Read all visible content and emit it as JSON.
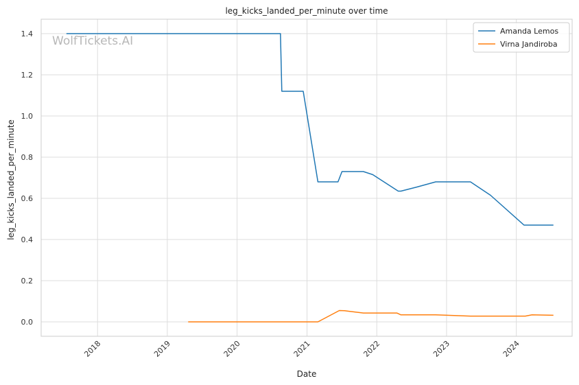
{
  "watermark": "WolfTickets.AI",
  "chart_data": {
    "type": "line",
    "title": "leg_kicks_landed_per_minute over time",
    "xlabel": "Date",
    "ylabel": "leg_kicks_landed_per_minute",
    "x_type": "date",
    "xlim": [
      "2017-03-12",
      "2024-10-19"
    ],
    "ylim": [
      -0.07,
      1.47
    ],
    "x_ticks": [
      {
        "date": "2018-01-01",
        "label": "2018"
      },
      {
        "date": "2019-01-01",
        "label": "2019"
      },
      {
        "date": "2020-01-01",
        "label": "2020"
      },
      {
        "date": "2021-01-01",
        "label": "2021"
      },
      {
        "date": "2022-01-01",
        "label": "2022"
      },
      {
        "date": "2023-01-01",
        "label": "2023"
      },
      {
        "date": "2024-01-01",
        "label": "2024"
      }
    ],
    "y_ticks": [
      {
        "value": 0.0,
        "label": "0.0"
      },
      {
        "value": 0.2,
        "label": "0.2"
      },
      {
        "value": 0.4,
        "label": "0.4"
      },
      {
        "value": 0.6,
        "label": "0.6"
      },
      {
        "value": 0.8,
        "label": "0.8"
      },
      {
        "value": 1.0,
        "label": "1.0"
      },
      {
        "value": 1.2,
        "label": "1.2"
      },
      {
        "value": 1.4,
        "label": "1.4"
      }
    ],
    "grid": true,
    "legend_position": "top-right",
    "series": [
      {
        "name": "Amanda Lemos",
        "color": "#1f77b4",
        "points": [
          {
            "x": "2017-07-22",
            "y": 1.4
          },
          {
            "x": "2020-08-15",
            "y": 1.4
          },
          {
            "x": "2020-08-22",
            "y": 1.12
          },
          {
            "x": "2020-12-12",
            "y": 1.12
          },
          {
            "x": "2021-02-27",
            "y": 0.68
          },
          {
            "x": "2021-06-12",
            "y": 0.68
          },
          {
            "x": "2021-07-03",
            "y": 0.73
          },
          {
            "x": "2021-10-23",
            "y": 0.73
          },
          {
            "x": "2021-12-11",
            "y": 0.715
          },
          {
            "x": "2022-04-23",
            "y": 0.635
          },
          {
            "x": "2022-05-07",
            "y": 0.635
          },
          {
            "x": "2022-07-30",
            "y": 0.655
          },
          {
            "x": "2022-11-05",
            "y": 0.68
          },
          {
            "x": "2023-05-06",
            "y": 0.68
          },
          {
            "x": "2023-08-19",
            "y": 0.615
          },
          {
            "x": "2024-02-10",
            "y": 0.47
          },
          {
            "x": "2024-07-13",
            "y": 0.47
          }
        ]
      },
      {
        "name": "Virna Jandiroba",
        "color": "#ff7f0e",
        "points": [
          {
            "x": "2019-04-20",
            "y": 0.0
          },
          {
            "x": "2021-02-27",
            "y": 0.0
          },
          {
            "x": "2021-06-19",
            "y": 0.055
          },
          {
            "x": "2021-07-17",
            "y": 0.054
          },
          {
            "x": "2021-10-23",
            "y": 0.043
          },
          {
            "x": "2022-04-16",
            "y": 0.043
          },
          {
            "x": "2022-05-07",
            "y": 0.034
          },
          {
            "x": "2022-11-05",
            "y": 0.034
          },
          {
            "x": "2023-05-06",
            "y": 0.028
          },
          {
            "x": "2024-02-17",
            "y": 0.028
          },
          {
            "x": "2024-03-23",
            "y": 0.034
          },
          {
            "x": "2024-07-13",
            "y": 0.032
          }
        ]
      }
    ]
  }
}
